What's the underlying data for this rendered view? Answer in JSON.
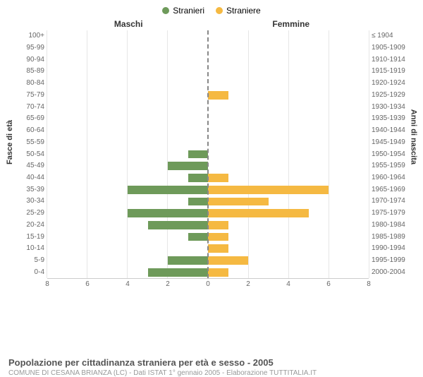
{
  "chart": {
    "type": "population-pyramid",
    "legend": [
      {
        "label": "Stranieri",
        "color": "#6e9a5a"
      },
      {
        "label": "Straniere",
        "color": "#f5b942"
      }
    ],
    "section_left_title": "Maschi",
    "section_right_title": "Femmine",
    "y_axis_left_title": "Fasce di età",
    "y_axis_right_title": "Anni di nascita",
    "x_max": 8,
    "x_ticks": [
      8,
      6,
      4,
      2,
      0,
      2,
      4,
      6,
      8
    ],
    "male_color": "#6e9a5a",
    "female_color": "#f5b942",
    "grid_color": "#e6e6e6",
    "background_color": "#ffffff",
    "rows": [
      {
        "age": "100+",
        "birth": "≤ 1904",
        "m": 0,
        "f": 0
      },
      {
        "age": "95-99",
        "birth": "1905-1909",
        "m": 0,
        "f": 0
      },
      {
        "age": "90-94",
        "birth": "1910-1914",
        "m": 0,
        "f": 0
      },
      {
        "age": "85-89",
        "birth": "1915-1919",
        "m": 0,
        "f": 0
      },
      {
        "age": "80-84",
        "birth": "1920-1924",
        "m": 0,
        "f": 0
      },
      {
        "age": "75-79",
        "birth": "1925-1929",
        "m": 0,
        "f": 1
      },
      {
        "age": "70-74",
        "birth": "1930-1934",
        "m": 0,
        "f": 0
      },
      {
        "age": "65-69",
        "birth": "1935-1939",
        "m": 0,
        "f": 0
      },
      {
        "age": "60-64",
        "birth": "1940-1944",
        "m": 0,
        "f": 0
      },
      {
        "age": "55-59",
        "birth": "1945-1949",
        "m": 0,
        "f": 0
      },
      {
        "age": "50-54",
        "birth": "1950-1954",
        "m": 1,
        "f": 0
      },
      {
        "age": "45-49",
        "birth": "1955-1959",
        "m": 2,
        "f": 0
      },
      {
        "age": "40-44",
        "birth": "1960-1964",
        "m": 1,
        "f": 1
      },
      {
        "age": "35-39",
        "birth": "1965-1969",
        "m": 4,
        "f": 6
      },
      {
        "age": "30-34",
        "birth": "1970-1974",
        "m": 1,
        "f": 3
      },
      {
        "age": "25-29",
        "birth": "1975-1979",
        "m": 4,
        "f": 5
      },
      {
        "age": "20-24",
        "birth": "1980-1984",
        "m": 3,
        "f": 1
      },
      {
        "age": "15-19",
        "birth": "1985-1989",
        "m": 1,
        "f": 1
      },
      {
        "age": "10-14",
        "birth": "1990-1994",
        "m": 0,
        "f": 1
      },
      {
        "age": "5-9",
        "birth": "1995-1999",
        "m": 2,
        "f": 2
      },
      {
        "age": "0-4",
        "birth": "2000-2004",
        "m": 3,
        "f": 1
      }
    ]
  },
  "caption": {
    "title": "Popolazione per cittadinanza straniera per età e sesso - 2005",
    "subtitle": "COMUNE DI CESANA BRIANZA (LC) - Dati ISTAT 1° gennaio 2005 - Elaborazione TUTTITALIA.IT"
  }
}
